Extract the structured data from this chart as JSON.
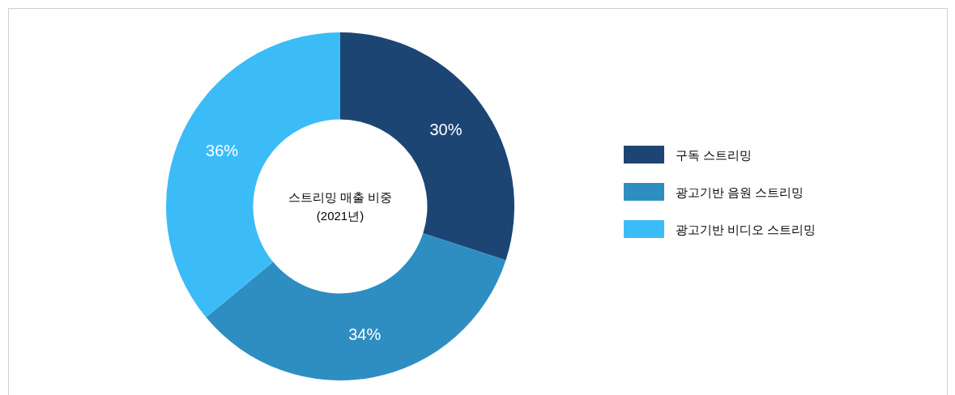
{
  "chart_data": {
    "type": "donut",
    "title": "스트리밍 매출 비중",
    "subtitle": "(2021년)",
    "categories": [
      "구독 스트리밍",
      "광고기반 음원 스트리밍",
      "광고기반 비디오 스트리밍"
    ],
    "values": [
      30,
      34,
      36
    ],
    "colors": [
      "#1d4574",
      "#2e8ec2",
      "#3cbcf7"
    ],
    "value_labels": [
      "30%",
      "34%",
      "36%"
    ],
    "legend": "right"
  }
}
